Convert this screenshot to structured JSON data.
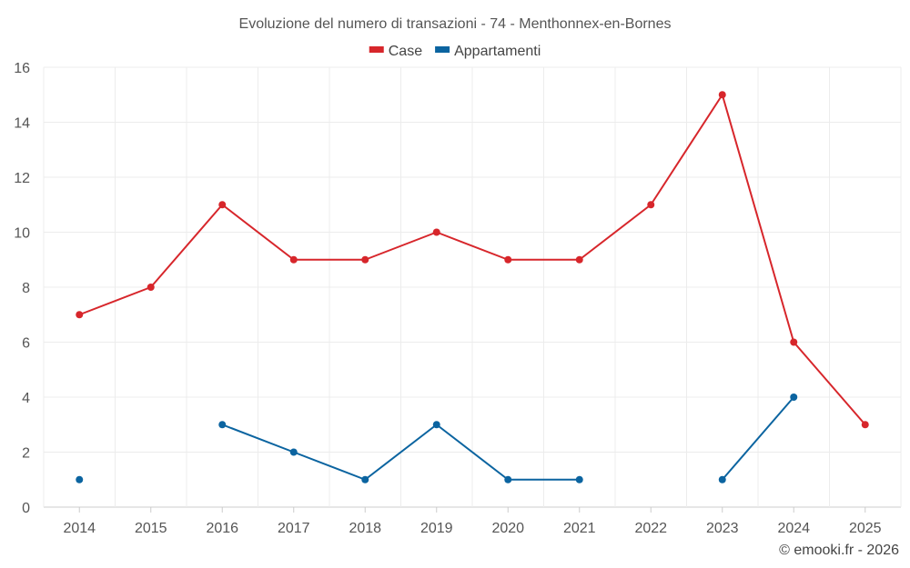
{
  "chart_data": {
    "type": "line",
    "title": "Evoluzione del numero di transazioni - 74 - Menthonnex-en-Bornes",
    "categories": [
      "2014",
      "2015",
      "2016",
      "2017",
      "2018",
      "2019",
      "2020",
      "2021",
      "2022",
      "2023",
      "2024",
      "2025"
    ],
    "series": [
      {
        "name": "Case",
        "color": "#d7262b",
        "values": [
          7,
          8,
          11,
          9,
          9,
          10,
          9,
          9,
          11,
          15,
          6,
          3
        ]
      },
      {
        "name": "Appartamenti",
        "color": "#0b64a0",
        "values": [
          1,
          null,
          3,
          2,
          1,
          3,
          1,
          1,
          null,
          1,
          4,
          null
        ]
      }
    ],
    "ylim": [
      0,
      16
    ],
    "yticks": [
      0,
      2,
      4,
      6,
      8,
      10,
      12,
      14,
      16
    ],
    "xlabel": "",
    "ylabel": "",
    "legend_position": "top-center",
    "grid": true
  },
  "credit": "© emooki.fr - 2026"
}
